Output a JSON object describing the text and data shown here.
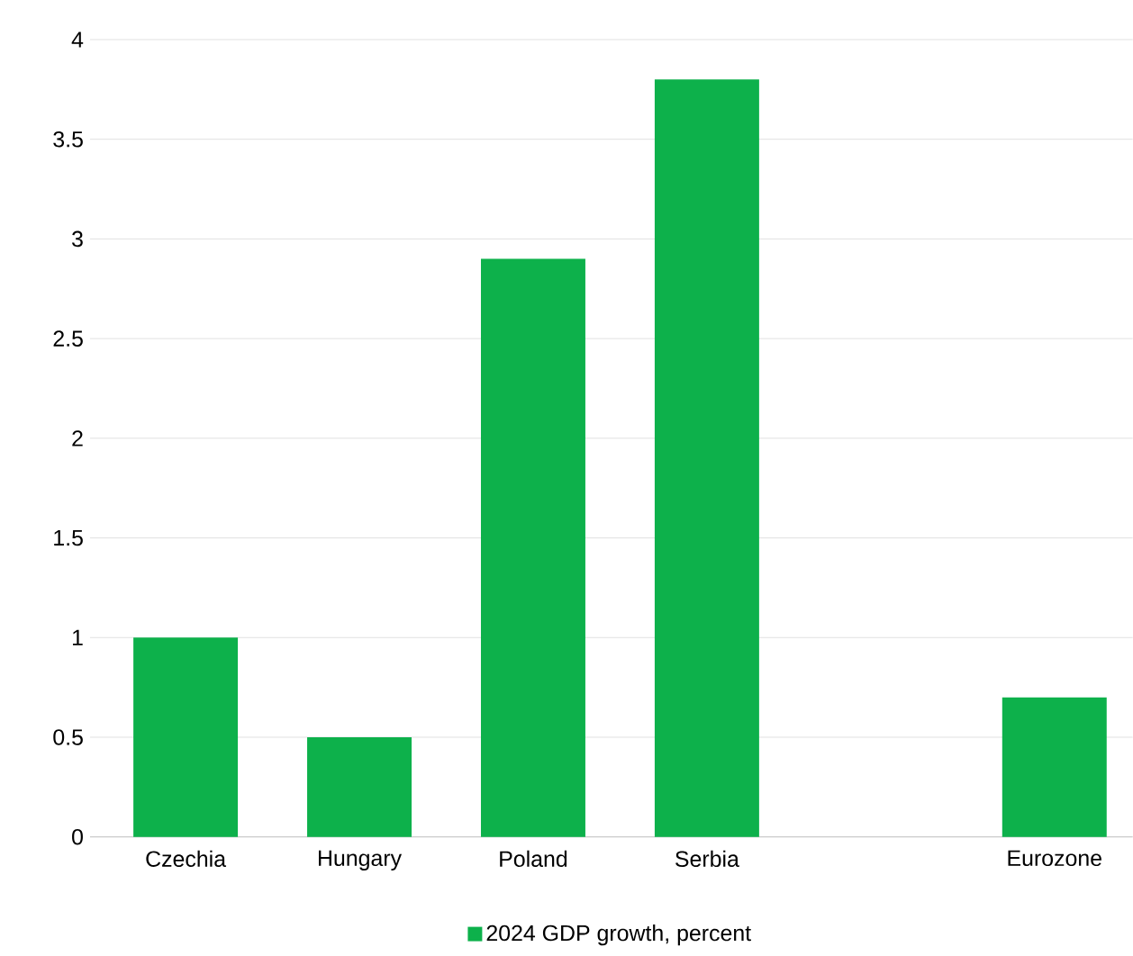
{
  "chart_data": {
    "type": "bar",
    "categories": [
      "Czechia",
      "Hungary",
      "Poland",
      "Serbia",
      null,
      "Eurozone"
    ],
    "series": [
      {
        "name": "2024 GDP growth, percent",
        "color": "#0db14b",
        "values": [
          1,
          0.5,
          2.9,
          3.8,
          null,
          0.7
        ]
      }
    ],
    "ylim": [
      0,
      4
    ],
    "yticks": [
      0,
      0.5,
      1,
      1.5,
      2,
      2.5,
      3,
      3.5,
      4
    ],
    "grid": "y",
    "legend": "bottom"
  }
}
